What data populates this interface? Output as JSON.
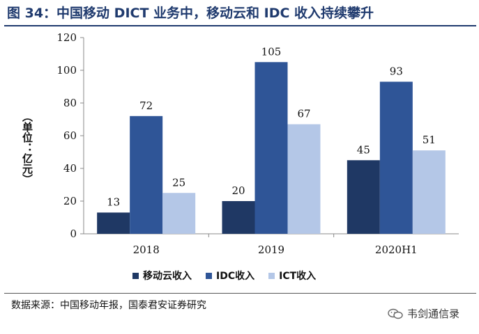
{
  "title": "图 34：中国移动 DICT 业务中，移动云和 IDC 收入持续攀升",
  "source": "数据来源：中国移动年报，国泰君安证券研究",
  "watermark": "韦剑通信录",
  "chart_data": {
    "type": "bar",
    "ylabel": "（单位：亿元）",
    "ylim": [
      0,
      120
    ],
    "yticks": [
      0,
      20,
      40,
      60,
      80,
      100,
      120
    ],
    "categories": [
      "2018",
      "2019",
      "2020H1"
    ],
    "series": [
      {
        "name": "移动云收入",
        "values": [
          13,
          20,
          45
        ],
        "color": "#1f3864"
      },
      {
        "name": "IDC收入",
        "values": [
          72,
          105,
          93
        ],
        "color": "#2f5597"
      },
      {
        "name": "ICT收入",
        "values": [
          25,
          67,
          51
        ],
        "color": "#b4c7e7"
      }
    ],
    "legend": "bottom",
    "grid": false
  }
}
